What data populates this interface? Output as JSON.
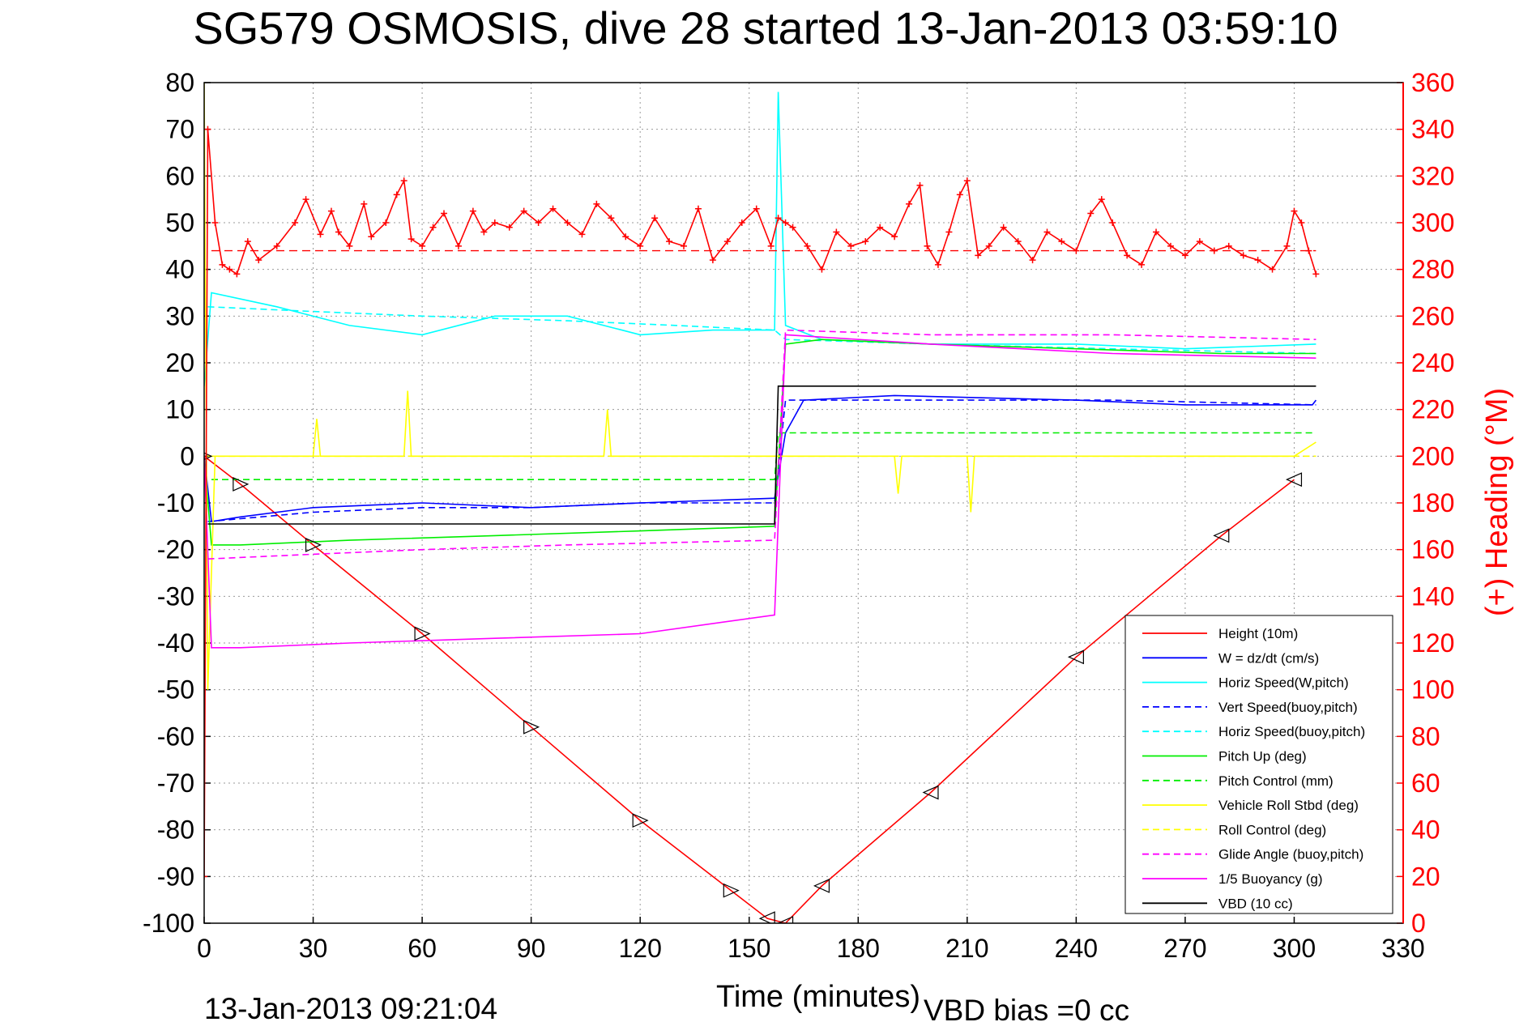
{
  "title": "SG579 OSMOSIS, dive 28 started 13-Jan-2013 03:59:10",
  "footer": {
    "timestamp": "13-Jan-2013 09:21:04",
    "vbd_bias": "VBD bias =0 cc"
  },
  "colors": {
    "red": "#ff0000",
    "blue": "#0000ff",
    "cyan": "#00ffff",
    "green": "#00ee00",
    "yellow": "#ffff00",
    "magenta": "#ff00ff",
    "black": "#000000"
  },
  "chart_data": {
    "type": "line",
    "xlabel": "Time (minutes)",
    "ylabel": "",
    "y2label": "(+) Heading (°M)",
    "xlim": [
      0,
      330
    ],
    "ylim": [
      -100,
      80
    ],
    "y2lim": [
      0,
      360
    ],
    "xticks": [
      "0",
      "30",
      "60",
      "90",
      "120",
      "150",
      "180",
      "210",
      "240",
      "270",
      "300",
      "330"
    ],
    "yticks": [
      "80",
      "70",
      "60",
      "50",
      "40",
      "30",
      "20",
      "10",
      "0",
      "-10",
      "-20",
      "-30",
      "-40",
      "-50",
      "-60",
      "-70",
      "-80",
      "-90",
      "-100"
    ],
    "y2ticks": [
      "360",
      "340",
      "320",
      "300",
      "280",
      "260",
      "240",
      "220",
      "200",
      "180",
      "160",
      "140",
      "120",
      "100",
      "80",
      "60",
      "40",
      "20",
      "0"
    ],
    "grid": true,
    "legend_position": "lower-right",
    "series": [
      {
        "name": "Height (10m)",
        "color": "#ff0000",
        "style": "solid",
        "axis": "left",
        "x": [
          0,
          10,
          30,
          60,
          90,
          120,
          145,
          155,
          160,
          170,
          200,
          240,
          280,
          300
        ],
        "y": [
          0,
          -6,
          -19,
          -38,
          -58,
          -78,
          -93,
          -99,
          -100,
          -92,
          -72,
          -43,
          -17,
          -5
        ]
      },
      {
        "name": "W = dz/dt (cm/s)",
        "color": "#0000ff",
        "style": "solid",
        "axis": "left",
        "x": [
          0,
          2,
          10,
          30,
          60,
          90,
          120,
          157,
          160,
          165,
          190,
          240,
          270,
          305,
          306
        ],
        "y": [
          0,
          -14,
          -13,
          -11,
          -10,
          -11,
          -10,
          -9,
          5,
          12,
          13,
          12,
          11,
          11,
          12
        ]
      },
      {
        "name": "Horiz Speed(W,pitch)",
        "color": "#00ffff",
        "style": "solid",
        "axis": "left",
        "x": [
          0,
          2,
          20,
          40,
          60,
          80,
          100,
          120,
          140,
          157,
          158,
          160,
          170,
          200,
          240,
          270,
          306
        ],
        "y": [
          15,
          35,
          32,
          28,
          26,
          30,
          30,
          26,
          27,
          27,
          78,
          28,
          25,
          24,
          24,
          23,
          24
        ]
      },
      {
        "name": "Vert Speed(buoy,pitch)",
        "color": "#0000ff",
        "style": "dashed",
        "axis": "left",
        "x": [
          1,
          30,
          60,
          90,
          120,
          157,
          160,
          200,
          250,
          306
        ],
        "y": [
          -14,
          -12,
          -11,
          -11,
          -10,
          -10,
          12,
          12,
          12,
          11
        ]
      },
      {
        "name": "Horiz Speed(buoy,pitch)",
        "color": "#00ffff",
        "style": "dashed",
        "axis": "left",
        "x": [
          1,
          30,
          60,
          100,
          130,
          157,
          160,
          200,
          250,
          306
        ],
        "y": [
          32,
          31,
          30,
          29,
          28,
          27,
          25,
          24,
          23,
          22
        ]
      },
      {
        "name": "Pitch Up (deg)",
        "color": "#00ee00",
        "style": "solid",
        "axis": "left",
        "x": [
          0,
          2,
          10,
          40,
          80,
          120,
          157,
          160,
          170,
          200,
          240,
          280,
          306
        ],
        "y": [
          0,
          -19,
          -19,
          -18,
          -17,
          -16,
          -15,
          24,
          25,
          24,
          23,
          22,
          22
        ]
      },
      {
        "name": "Pitch Control (mm)",
        "color": "#00ee00",
        "style": "dashed",
        "axis": "left",
        "x": [
          2,
          157,
          158,
          306
        ],
        "y": [
          -5,
          -5,
          5,
          5
        ]
      },
      {
        "name": "Vehicle Roll Stbd (deg)",
        "color": "#ffff00",
        "style": "solid",
        "axis": "left",
        "x": [
          0,
          1,
          3,
          5,
          30,
          31,
          32,
          55,
          56,
          57,
          100,
          110,
          111,
          112,
          157,
          170,
          190,
          191,
          192,
          210,
          211,
          212,
          260,
          300,
          306
        ],
        "y": [
          80,
          -50,
          0,
          0,
          0,
          8,
          0,
          0,
          14,
          0,
          0,
          0,
          10,
          0,
          0,
          0,
          0,
          -8,
          0,
          0,
          -12,
          0,
          0,
          0,
          3
        ]
      },
      {
        "name": "Roll Control (deg)",
        "color": "#ffff00",
        "style": "dashed",
        "axis": "left",
        "x": [
          1,
          306
        ],
        "y": [
          0,
          0
        ]
      },
      {
        "name": "Glide Angle (buoy,pitch)",
        "color": "#ff00ff",
        "style": "dashed",
        "axis": "left",
        "x": [
          1,
          30,
          60,
          100,
          157,
          160,
          200,
          250,
          306
        ],
        "y": [
          -22,
          -21,
          -20,
          -19,
          -18,
          27,
          26,
          26,
          25
        ]
      },
      {
        "name": "1/5 Buoyancy (g)",
        "color": "#ff00ff",
        "style": "solid",
        "axis": "left",
        "x": [
          0,
          2,
          10,
          40,
          80,
          120,
          157,
          160,
          200,
          250,
          306
        ],
        "y": [
          0,
          -41,
          -41,
          -40,
          -39,
          -38,
          -34,
          26,
          24,
          22,
          21
        ]
      },
      {
        "name": "VBD (10 cc)",
        "color": "#000000",
        "style": "solid",
        "axis": "left",
        "x": [
          1,
          157,
          158,
          306
        ],
        "y": [
          -14.5,
          -14.5,
          15,
          15
        ]
      }
    ],
    "heading": {
      "color": "#ff0000",
      "axis": "right",
      "target": 288,
      "x": [
        0,
        1,
        3,
        5,
        7,
        9,
        12,
        15,
        20,
        25,
        28,
        32,
        35,
        37,
        40,
        44,
        46,
        50,
        53,
        55,
        57,
        60,
        63,
        66,
        70,
        74,
        77,
        80,
        84,
        88,
        92,
        96,
        100,
        104,
        108,
        112,
        116,
        120,
        124,
        128,
        132,
        136,
        140,
        144,
        148,
        152,
        156,
        158,
        160,
        162,
        166,
        170,
        174,
        178,
        182,
        186,
        190,
        194,
        197,
        199,
        202,
        205,
        208,
        210,
        213,
        216,
        220,
        224,
        228,
        232,
        236,
        240,
        244,
        247,
        250,
        254,
        258,
        262,
        266,
        270,
        274,
        278,
        282,
        286,
        290,
        294,
        298,
        300,
        302,
        304,
        306
      ],
      "y": [
        20,
        340,
        300,
        282,
        280,
        278,
        292,
        284,
        290,
        300,
        310,
        295,
        305,
        296,
        290,
        308,
        294,
        300,
        312,
        318,
        293,
        290,
        298,
        304,
        290,
        305,
        296,
        300,
        298,
        305,
        300,
        306,
        300,
        295,
        308,
        302,
        294,
        290,
        302,
        292,
        290,
        306,
        284,
        292,
        300,
        306,
        290,
        302,
        300,
        298,
        290,
        280,
        296,
        290,
        292,
        298,
        294,
        308,
        316,
        290,
        282,
        296,
        312,
        318,
        286,
        290,
        298,
        292,
        284,
        296,
        292,
        288,
        304,
        310,
        300,
        286,
        282,
        296,
        290,
        286,
        292,
        288,
        290,
        286,
        284,
        280,
        290,
        305,
        300,
        288,
        278
      ]
    }
  }
}
